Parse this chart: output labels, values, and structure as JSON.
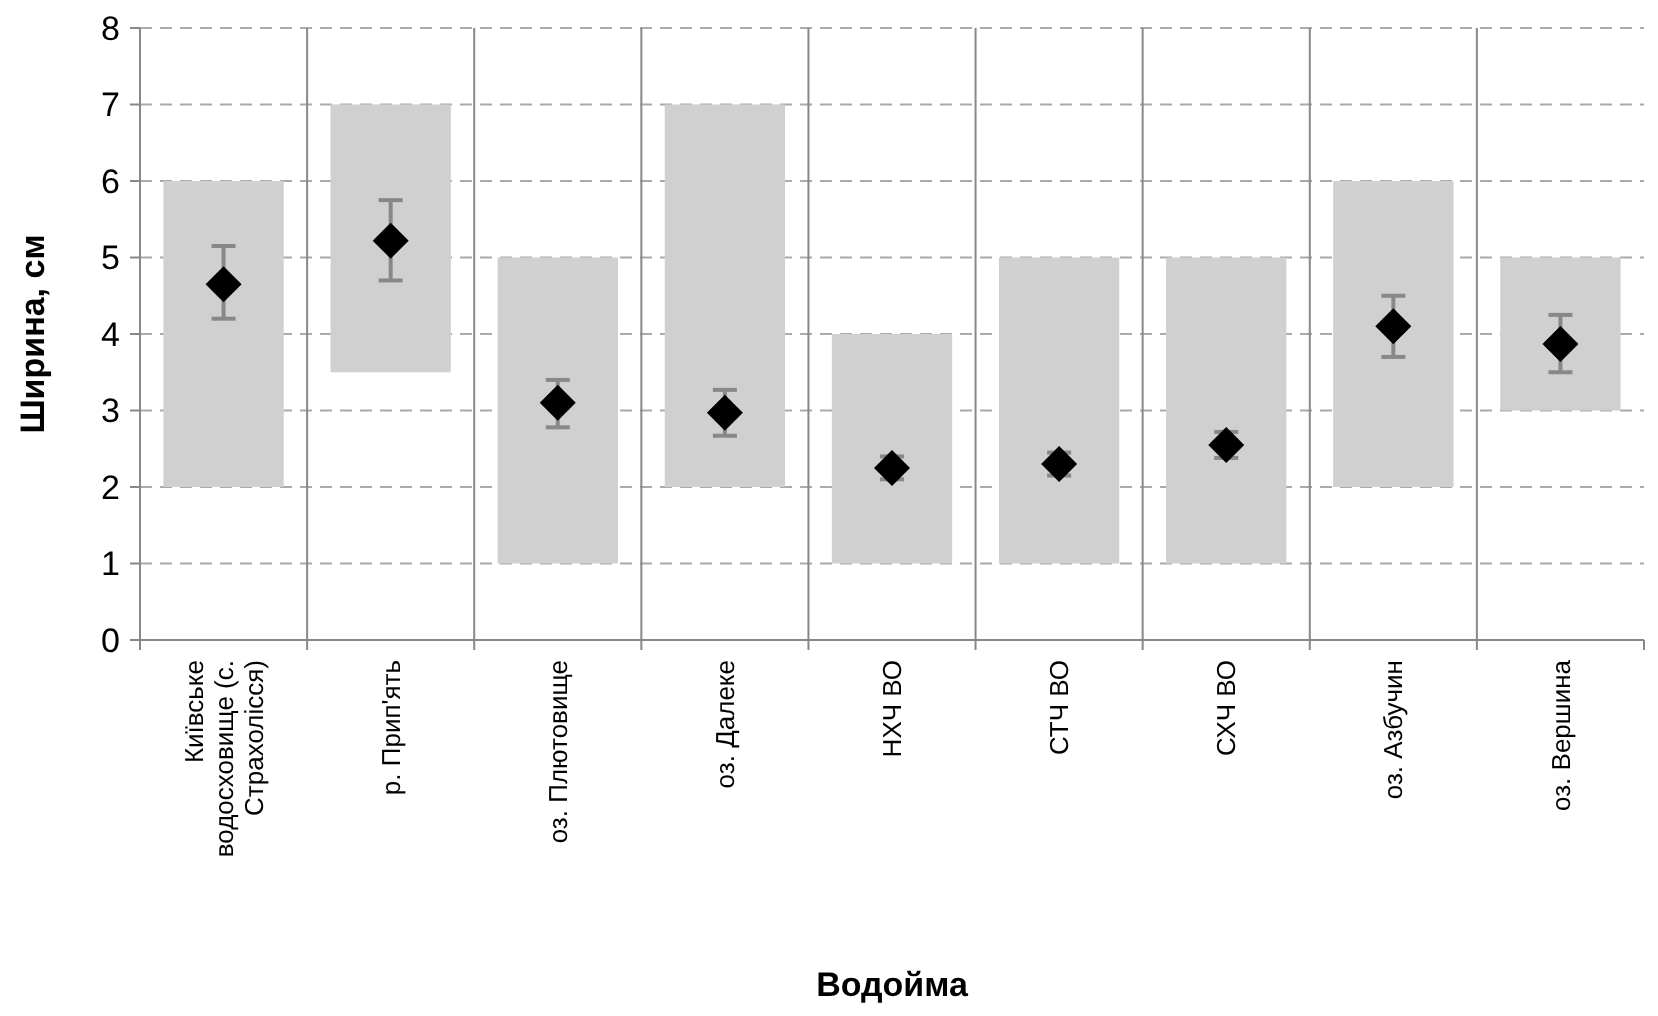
{
  "chart_data": {
    "type": "bar",
    "xlabel": "Водойма",
    "ylabel": "Ширина, см",
    "categories": [
      "Київське водосховище (с. Страхолісся)",
      "р. Прип'ять",
      "оз. Плютовище",
      "оз. Далеке",
      "НХЧ ВО",
      "СТЧ ВО",
      "СХЧ ВО",
      "оз. Азбучин",
      "оз. Вершина"
    ],
    "series": [
      {
        "color": "#d0d0d0",
        "base": [
          2,
          3.5,
          1,
          2,
          1,
          1,
          1,
          2,
          3
        ],
        "values": [
          4,
          3.5,
          4,
          5,
          3,
          4,
          4,
          4,
          2
        ]
      },
      {
        "type": "scatter",
        "color": "#000000",
        "marker": "diamond",
        "values": [
          4.65,
          5.22,
          3.1,
          2.97,
          2.25,
          2.3,
          2.55,
          4.1,
          3.87
        ],
        "errors": [
          [
            4.2,
            5.15
          ],
          [
            4.7,
            5.75
          ],
          [
            2.78,
            3.4
          ],
          [
            2.67,
            3.27
          ],
          [
            2.1,
            2.4
          ],
          [
            2.15,
            2.45
          ],
          [
            2.38,
            2.72
          ],
          [
            3.7,
            4.5
          ],
          [
            3.5,
            4.25
          ]
        ]
      }
    ],
    "ylim": [
      0,
      8
    ],
    "yticks": [
      0,
      1,
      2,
      3,
      4,
      5,
      6,
      7,
      8
    ],
    "grid": true
  }
}
